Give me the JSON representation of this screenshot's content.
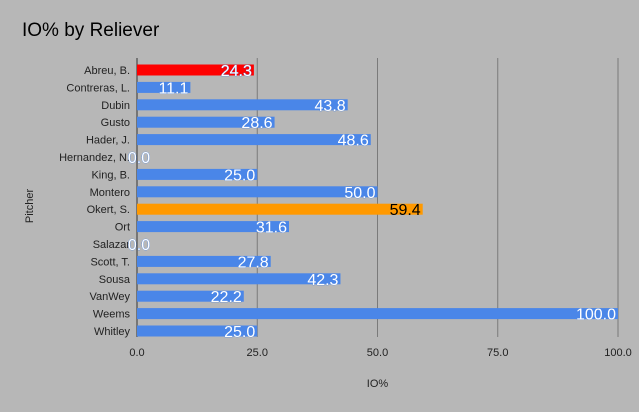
{
  "chart_data": {
    "type": "bar",
    "orientation": "horizontal",
    "title": "IO% by Reliever",
    "xlabel": "IO%",
    "ylabel": "Pitcher",
    "xlim": [
      0,
      100
    ],
    "x_ticks": [
      "0.0",
      "25.0",
      "50.0",
      "75.0",
      "100.0"
    ],
    "grid": true,
    "categories": [
      "Abreu, B.",
      "Contreras, L.",
      "Dubin",
      "Gusto",
      "Hader, J.",
      "Hernandez, N.",
      "King, B.",
      "Montero",
      "Okert, S.",
      "Ort",
      "Salazar",
      "Scott, T.",
      "Sousa",
      "VanWey",
      "Weems",
      "Whitley"
    ],
    "values": [
      24.3,
      11.1,
      43.8,
      28.6,
      48.6,
      0.0,
      25.0,
      50.0,
      59.4,
      31.6,
      0.0,
      27.8,
      42.3,
      22.2,
      100.0,
      25.0
    ],
    "value_labels": [
      "24.3",
      "11.1",
      "43.8",
      "28.6",
      "48.6",
      "0.0",
      "25.0",
      "50.0",
      "59.4",
      "31.6",
      "0.0",
      "27.8",
      "42.3",
      "22.2",
      "100.0",
      "25.0"
    ],
    "default_color": "#4a86e8",
    "highlight_colors": {
      "Abreu, B.": "#ff0000",
      "Okert, S.": "#ff9900"
    },
    "label_colors": {
      "default": "#ffffff",
      "Okert, S.": "#000000"
    }
  }
}
